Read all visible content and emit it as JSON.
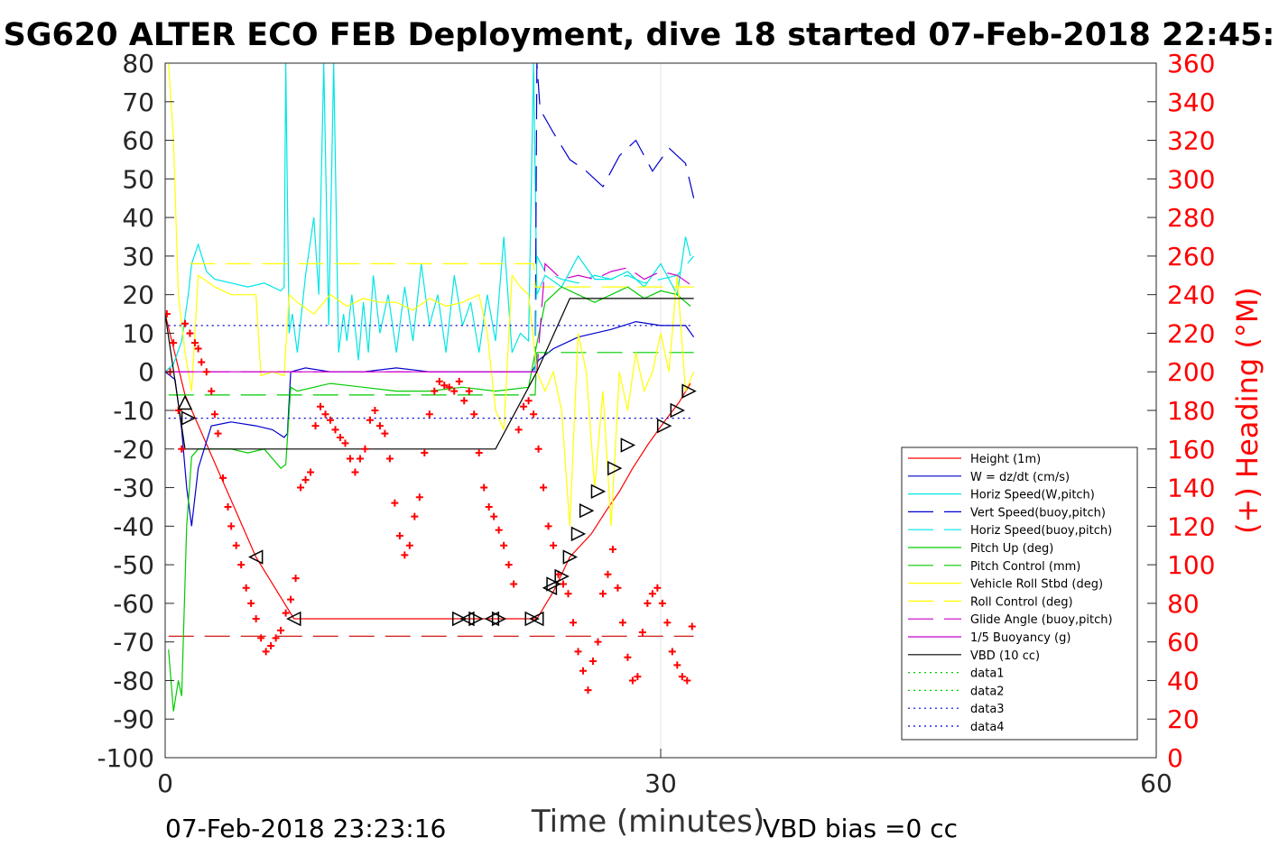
{
  "chart_data": {
    "type": "line",
    "title": "SG620 ALTER ECO FEB Deployment, dive 18 started 07-Feb-2018 22:45:",
    "xlabel": "Time (minutes)",
    "ylabel": "",
    "ylabel_right": "(+) Heading (°M)",
    "xlim": [
      0,
      60
    ],
    "ylim": [
      -100,
      80
    ],
    "ylim_right": [
      0,
      360
    ],
    "x_ticks": [
      "0",
      "30",
      "60"
    ],
    "y_ticks": [
      "80",
      "70",
      "60",
      "50",
      "40",
      "30",
      "20",
      "10",
      "0",
      "-10",
      "-20",
      "-30",
      "-40",
      "-50",
      "-60",
      "-70",
      "-80",
      "-90",
      "-100"
    ],
    "y_ticks_right": [
      "360",
      "340",
      "320",
      "300",
      "280",
      "260",
      "240",
      "220",
      "200",
      "180",
      "160",
      "140",
      "120",
      "100",
      "80",
      "60",
      "40",
      "20",
      "0"
    ],
    "grid": "vertical at 30",
    "legend_position": "bottom-right",
    "footer_left": "07-Feb-2018 23:23:16",
    "footer_right": "VBD bias =0 cc",
    "colors": {
      "height": "#ff0000",
      "w": "#0000cc",
      "horiz": "#00e5e5",
      "pitch": "#00cc00",
      "roll": "#ffff00",
      "glide": "#cc00cc",
      "vbd": "#000000",
      "heading": "#ff0000"
    },
    "series": [
      {
        "name": "Height (1m)",
        "color": "#ff0000",
        "dash": "solid",
        "x": [
          0,
          1.2,
          5.5,
          7.8,
          17.8,
          18.8,
          20.0,
          22.5,
          23.5,
          24.5,
          25.8,
          26.7,
          27.5,
          28.3,
          29.2,
          30.2,
          31.1,
          31.8
        ],
        "y": [
          15,
          -6,
          -48,
          -64,
          -64,
          -64,
          -64,
          -64,
          -57,
          -48,
          -42,
          -36,
          -31,
          -25,
          -19,
          -13,
          -8,
          -3
        ]
      },
      {
        "name": "W = dz/dt (cm/s)",
        "color": "#0000cc",
        "dash": "solid",
        "x": [
          0,
          0.6,
          1.0,
          1.3,
          1.6,
          2.0,
          2.8,
          4.0,
          5.5,
          6.5,
          7.2,
          7.4,
          7.6,
          8.5,
          10,
          12,
          14,
          16,
          18,
          20,
          22.2,
          22.6,
          23.5,
          25,
          27,
          28.5,
          30,
          31.5,
          32.0
        ],
        "y": [
          0,
          -2,
          -15,
          -30,
          -40,
          -25,
          -14,
          -13,
          -14,
          -15,
          -17,
          -16,
          0,
          1,
          0,
          0,
          1,
          0,
          0,
          0,
          0,
          3,
          6,
          9,
          11,
          13,
          12,
          12,
          9
        ]
      },
      {
        "name": "Horiz Speed(W,pitch)",
        "color": "#00e5e5",
        "dash": "solid",
        "x": [
          0,
          0.5,
          1.0,
          1.4,
          1.6,
          2.0,
          2.5,
          3.0,
          4.0,
          5.0,
          6.0,
          7.0,
          7.2,
          7.3,
          7.5,
          7.7,
          8.0,
          8.5,
          9.0,
          9.3,
          9.6,
          9.9,
          10.2,
          10.5,
          10.8,
          11.0,
          11.3,
          11.7,
          12.0,
          12.3,
          12.6,
          13.0,
          13.5,
          14.0,
          14.5,
          15.0,
          15.5,
          16.0,
          16.5,
          17.0,
          17.5,
          18.0,
          18.5,
          19.0,
          19.5,
          20.0,
          20.5,
          21.0,
          21.5,
          22.0,
          22.3,
          22.5,
          23.0,
          24.0,
          25.0,
          26.0,
          27.0,
          28.0,
          29.0,
          30.0,
          31.0,
          31.5,
          31.8
        ],
        "y": [
          0,
          2,
          8,
          20,
          28,
          33,
          26,
          24,
          23,
          22,
          23,
          21,
          22,
          80,
          10,
          15,
          5,
          25,
          40,
          20,
          80,
          12,
          80,
          5,
          15,
          8,
          20,
          3,
          18,
          5,
          25,
          10,
          20,
          5,
          22,
          8,
          28,
          12,
          20,
          5,
          25,
          12,
          18,
          5,
          20,
          8,
          35,
          5,
          10,
          8,
          80,
          20,
          25,
          22,
          30,
          24,
          24,
          26,
          22,
          28,
          20,
          35,
          30
        ]
      },
      {
        "name": "Vert Speed(buoy,pitch)",
        "color": "#0000cc",
        "dash": "dashed",
        "x": [
          22.4,
          22.5,
          22.7,
          23.5,
          24.5,
          25.5,
          26.5,
          27.5,
          28.5,
          29.5,
          30.5,
          31.5,
          32.0
        ],
        "y": [
          0,
          80,
          68,
          62,
          55,
          52,
          48,
          56,
          60,
          52,
          58,
          54,
          45
        ]
      },
      {
        "name": "Horiz Speed(buoy,pitch)",
        "color": "#00e5e5",
        "dash": "dashed",
        "x": [
          22.4,
          22.5,
          23.0,
          24.0,
          25.0,
          26.0,
          27.0,
          28.0,
          29.0,
          30.0,
          31.0,
          32.0
        ],
        "y": [
          0,
          30,
          26,
          24,
          23,
          25,
          24,
          25,
          23,
          24,
          25,
          30
        ]
      },
      {
        "name": "Pitch Up (deg)",
        "color": "#00cc00",
        "dash": "solid",
        "x": [
          0.2,
          0.5,
          0.8,
          1.0,
          1.3,
          1.6,
          2.0,
          3.0,
          4.0,
          5.0,
          6.0,
          7.0,
          7.3,
          7.6,
          8.0,
          10.0,
          12.0,
          14.0,
          16.0,
          18.0,
          20.0,
          22.0,
          22.4,
          23.0,
          24.0,
          25.0,
          26.0,
          27.0,
          28.0,
          29.0,
          30.0,
          31.0,
          31.8
        ],
        "y": [
          -72,
          -88,
          -80,
          -84,
          -40,
          -22,
          -20,
          -20,
          -20,
          -21,
          -20,
          -25,
          -24,
          -4,
          -5,
          -3,
          -4,
          -5,
          -5,
          -4,
          -5,
          -4,
          5,
          18,
          22,
          20,
          18,
          20,
          22,
          19,
          21,
          20,
          17
        ]
      },
      {
        "name": "Pitch Control (mm)",
        "color": "#00cc00",
        "dash": "dashed",
        "x": [
          0.2,
          1.5,
          22.4,
          22.5,
          32.0
        ],
        "y": [
          -6,
          -6,
          -6,
          5,
          5
        ]
      },
      {
        "name": "Vehicle Roll Stbd (deg)",
        "color": "#ffff00",
        "dash": "solid",
        "x": [
          0.2,
          0.5,
          0.8,
          1.2,
          1.6,
          2.0,
          3.0,
          4.0,
          5.0,
          5.5,
          5.8,
          6.5,
          7.2,
          7.5,
          8.0,
          9.0,
          10.0,
          11.0,
          12.0,
          13.0,
          14.0,
          15.0,
          16.0,
          17.0,
          18.0,
          19.0,
          19.5,
          20.0,
          20.5,
          21.0,
          21.5,
          22.0,
          22.5,
          23.0,
          23.5,
          24.0,
          24.5,
          25.0,
          25.5,
          26.0,
          26.5,
          27.0,
          27.5,
          28.0,
          28.5,
          29.0,
          29.5,
          30.0,
          30.5,
          31.0,
          31.5,
          32.0
        ],
        "y": [
          80,
          60,
          20,
          5,
          -5,
          25,
          22,
          20,
          20,
          20,
          -1,
          0,
          -1,
          20,
          18,
          15,
          20,
          17,
          19,
          18,
          18,
          16,
          19,
          17,
          18,
          20,
          10,
          -10,
          -15,
          25,
          22,
          20,
          0,
          -5,
          0,
          -10,
          -40,
          10,
          0,
          -30,
          -5,
          -40,
          0,
          -10,
          5,
          -5,
          0,
          10,
          0,
          25,
          -5,
          0
        ]
      },
      {
        "name": "Roll Control (deg)",
        "color": "#ffff00",
        "dash": "dashed",
        "x": [
          1.5,
          5.5,
          5.6,
          19.5,
          19.6,
          22.3,
          22.4,
          32.0
        ],
        "y": [
          28,
          28,
          28,
          28,
          28,
          28,
          22,
          22
        ]
      },
      {
        "name": "Glide Angle (buoy,pitch)",
        "color": "#cc00cc",
        "dash": "dashed",
        "x": [
          0.2,
          22.4,
          22.5,
          23.0,
          24.0,
          25.0,
          26.0,
          27.0,
          28.0,
          29.0,
          30.0,
          31.0,
          32.0
        ],
        "y": [
          0,
          0,
          0,
          28,
          24,
          25,
          24,
          26,
          27,
          24,
          26,
          25,
          22
        ]
      },
      {
        "name": "1/5 Buoyancy (g)",
        "color": "#cc00cc",
        "dash": "solid",
        "x": [
          0.2,
          22.4
        ],
        "y": [
          0,
          0
        ]
      },
      {
        "name": "VBD (10 cc)",
        "color": "#000000",
        "dash": "solid",
        "x": [
          0,
          1.2,
          20.0,
          22.5,
          24.5,
          32.0
        ],
        "y": [
          15,
          -20,
          -20,
          0,
          19,
          19
        ]
      },
      {
        "name": "data1",
        "color": "#00cc00",
        "dash": "dotted",
        "x": [],
        "y": []
      },
      {
        "name": "data2",
        "color": "#00cc00",
        "dash": "dotted",
        "x": [],
        "y": []
      },
      {
        "name": "data3",
        "color": "#0000cc",
        "dash": "dotted",
        "x": [
          0.2,
          32.0
        ],
        "y": [
          12,
          12
        ]
      },
      {
        "name": "data4",
        "color": "#0000cc",
        "dash": "dotted",
        "x": [
          0.2,
          32.0
        ],
        "y": [
          -12,
          -12
        ]
      }
    ],
    "reference_lines": [
      {
        "color": "#cc0000",
        "dash": "dashed",
        "x": [
          0.2,
          32.0
        ],
        "y": [
          -68.5,
          -68.5
        ]
      }
    ],
    "triangles": [
      {
        "x": 1.2,
        "y": -8,
        "dir": "up"
      },
      {
        "x": 1.4,
        "y": -12,
        "dir": "right"
      },
      {
        "x": 5.5,
        "y": -48,
        "dir": "left"
      },
      {
        "x": 7.8,
        "y": -64,
        "dir": "left"
      },
      {
        "x": 17.8,
        "y": -64,
        "dir": "right"
      },
      {
        "x": 18.3,
        "y": -64,
        "dir": "left"
      },
      {
        "x": 18.8,
        "y": -64,
        "dir": "right"
      },
      {
        "x": 19.8,
        "y": -64,
        "dir": "left"
      },
      {
        "x": 20.2,
        "y": -64,
        "dir": "right"
      },
      {
        "x": 22.5,
        "y": -64,
        "dir": "left"
      },
      {
        "x": 22.2,
        "y": -64,
        "dir": "right"
      },
      {
        "x": 23.3,
        "y": -56,
        "dir": "left"
      },
      {
        "x": 23.5,
        "y": -55,
        "dir": "right"
      },
      {
        "x": 24.0,
        "y": -53,
        "dir": "right"
      },
      {
        "x": 24.5,
        "y": -48,
        "dir": "right"
      },
      {
        "x": 25.0,
        "y": -42,
        "dir": "right"
      },
      {
        "x": 25.5,
        "y": -36,
        "dir": "right"
      },
      {
        "x": 26.2,
        "y": -31,
        "dir": "right"
      },
      {
        "x": 27.2,
        "y": -25,
        "dir": "right"
      },
      {
        "x": 28.0,
        "y": -19,
        "dir": "right"
      },
      {
        "x": 30.2,
        "y": -14,
        "dir": "right"
      },
      {
        "x": 31.0,
        "y": -10,
        "dir": "right"
      },
      {
        "x": 31.7,
        "y": -5,
        "dir": "right"
      }
    ],
    "heading": {
      "name": "Heading",
      "color": "#ff0000",
      "x": [
        0.1,
        0.3,
        0.5,
        0.8,
        1.0,
        1.2,
        1.5,
        1.8,
        2.0,
        2.2,
        2.5,
        2.8,
        3.0,
        3.2,
        3.5,
        3.8,
        4.0,
        4.3,
        4.6,
        4.9,
        5.2,
        5.5,
        5.8,
        6.1,
        6.4,
        6.7,
        7.0,
        7.3,
        7.6,
        7.9,
        8.2,
        8.5,
        8.8,
        9.1,
        9.4,
        9.7,
        10.0,
        10.3,
        10.6,
        10.9,
        11.2,
        11.5,
        11.8,
        12.1,
        12.4,
        12.7,
        13.0,
        13.3,
        13.6,
        13.9,
        14.2,
        14.5,
        14.8,
        15.1,
        15.4,
        15.7,
        16.0,
        16.3,
        16.6,
        16.9,
        17.2,
        17.5,
        17.8,
        18.1,
        18.4,
        18.7,
        19.0,
        19.3,
        19.6,
        19.9,
        20.2,
        20.5,
        20.8,
        21.1,
        21.4,
        21.7,
        22.0,
        22.3,
        22.6,
        22.9,
        23.2,
        23.5,
        23.8,
        24.1,
        24.4,
        24.7,
        25.0,
        25.3,
        25.6,
        25.9,
        26.2,
        26.5,
        26.8,
        27.1,
        27.4,
        27.7,
        28.0,
        28.3,
        28.6,
        28.9,
        29.2,
        29.5,
        29.8,
        30.1,
        30.4,
        30.7,
        31.0,
        31.3,
        31.6,
        31.9
      ],
      "y": [
        230,
        200,
        215,
        180,
        160,
        225,
        220,
        215,
        212,
        205,
        200,
        190,
        178,
        168,
        145,
        130,
        120,
        110,
        100,
        88,
        80,
        72,
        62,
        55,
        58,
        62,
        66,
        75,
        82,
        93,
        140,
        144,
        148,
        172,
        182,
        178,
        175,
        170,
        166,
        163,
        155,
        148,
        155,
        160,
        175,
        180,
        172,
        168,
        155,
        132,
        115,
        105,
        110,
        125,
        135,
        158,
        178,
        190,
        195,
        193,
        192,
        190,
        195,
        185,
        190,
        178,
        158,
        140,
        130,
        125,
        118,
        110,
        100,
        90,
        170,
        182,
        185,
        178,
        160,
        140,
        120,
        110,
        95,
        90,
        85,
        70,
        55,
        45,
        35,
        50,
        60,
        85,
        95,
        108,
        88,
        70,
        52,
        40,
        42,
        65,
        80,
        85,
        88,
        80,
        70,
        55,
        48,
        42,
        40,
        68
      ]
    }
  }
}
